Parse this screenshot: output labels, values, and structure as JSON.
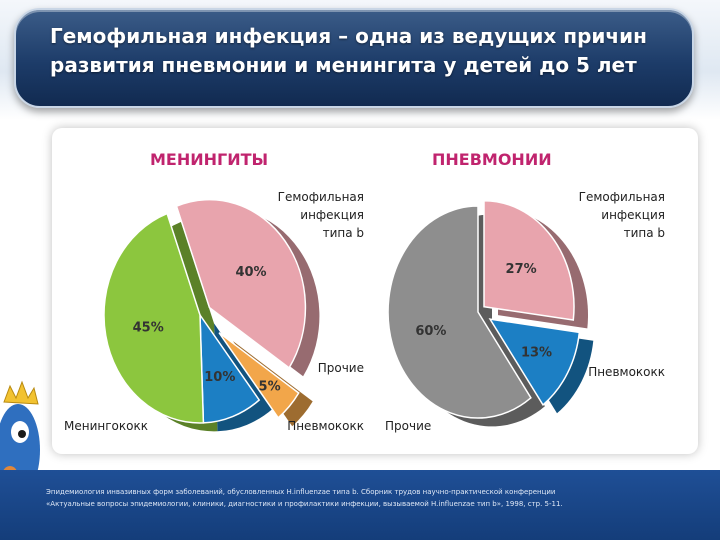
{
  "title": {
    "line1": "Гемофильная инфекция – одна из ведущих причин",
    "line2": "развития пневмонии и менингита у детей до 5 лет"
  },
  "colors": {
    "hib": "#e8a4ad",
    "meningococcus": "#8cc63e",
    "other_small": "#f2a64a",
    "pneumococcus": "#1c7fc4",
    "other_gray": "#8e8e8e",
    "chart_title": "#c0246e",
    "banner": "#1d3c69"
  },
  "chart_data": [
    {
      "type": "pie",
      "title": "МЕНИНГИТЫ",
      "slices": [
        {
          "key": "hib",
          "value": 40,
          "label": "40%",
          "legend": [
            "Гемофильная",
            "инфекция",
            "типа b"
          ]
        },
        {
          "key": "other",
          "value": 5,
          "label": "5%",
          "legend": [
            "Прочие"
          ]
        },
        {
          "key": "pneumococcus",
          "value": 10,
          "label": "10%",
          "legend": [
            "Пневмококк"
          ]
        },
        {
          "key": "meningococcus",
          "value": 45,
          "label": "45%",
          "legend": [
            "Менингококк"
          ]
        }
      ]
    },
    {
      "type": "pie",
      "title": "ПНЕВМОНИИ",
      "slices": [
        {
          "key": "hib",
          "value": 27,
          "label": "27%",
          "legend": [
            "Гемофильная",
            "инфекция",
            "типа b"
          ]
        },
        {
          "key": "pneumococcus",
          "value": 13,
          "label": "13%",
          "legend": [
            "Пневмококк"
          ]
        },
        {
          "key": "other",
          "value": 60,
          "label": "60%",
          "legend": [
            "Прочие"
          ]
        }
      ]
    }
  ],
  "footer": {
    "line1": "Эпидемиология инвазивных форм заболеваний, обусловленных H.influenzae типа b. Сборник трудов научно-практической конференции",
    "line2": "«Актуальные вопросы эпидемиологии, клиники, диагностики и профилактики инфекции, вызываемой H.influenzae тип b», 1998, стр. 5-11."
  }
}
